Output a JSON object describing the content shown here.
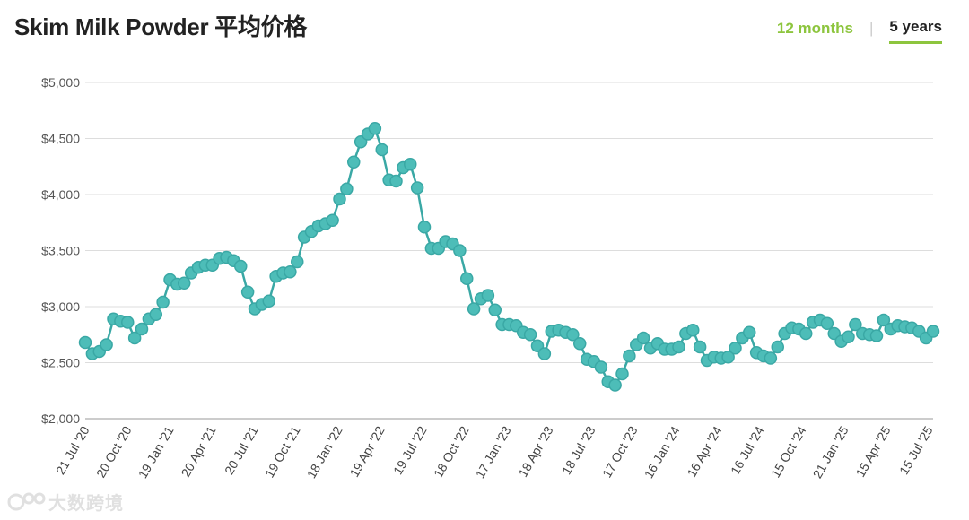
{
  "header": {
    "title": "Skim Milk Powder 平均价格",
    "tab_12m": "12 months",
    "tab_sep": "|",
    "tab_5y": "5 years"
  },
  "watermark": {
    "text": "大数跨境"
  },
  "colors": {
    "line": "#3aa8a5",
    "point_fill": "#4dbdb8",
    "grid": "#dddddd",
    "tab_active": "#8dc53e"
  },
  "chart_data": {
    "type": "line",
    "title": "",
    "xlabel": "",
    "ylabel": "",
    "ylim": [
      2000,
      5000
    ],
    "yticks": [
      2000,
      2500,
      3000,
      3500,
      4000,
      4500,
      5000
    ],
    "ytick_labels": [
      "$2,000",
      "$2,500",
      "$3,000",
      "$3,500",
      "$4,000",
      "$4,500",
      "$5,000"
    ],
    "xtick_labels": [
      "21 Jul '20",
      "20 Oct '20",
      "19 Jan '21",
      "20 Apr '21",
      "20 Jul '21",
      "19 Oct '21",
      "18 Jan '22",
      "19 Apr '22",
      "19 Jul '22",
      "18 Oct '22",
      "17 Jan '23",
      "18 Apr '23",
      "18 Jul '23",
      "17 Oct '23",
      "16 Jan '24",
      "16 Apr '24",
      "16 Jul '24",
      "15 Oct '24",
      "21 Jan '25",
      "15 Apr '25",
      "15 Jul '25"
    ],
    "grid": true,
    "legend": "none",
    "series": [
      {
        "values": [
          2680,
          2580,
          2600,
          2660,
          2890,
          2870,
          2860,
          2720,
          2800,
          2890,
          2930,
          3040,
          3240,
          3200,
          3210,
          3300,
          3350,
          3370,
          3370,
          3430,
          3440,
          3410,
          3360,
          3130,
          2980,
          3020,
          3050,
          3270,
          3300,
          3310,
          3400,
          3620,
          3670,
          3720,
          3740,
          3770,
          3960,
          4050,
          4290,
          4470,
          4540,
          4590,
          4400,
          4130,
          4120,
          4240,
          4270,
          4060,
          3710,
          3520,
          3520,
          3580,
          3560,
          3500,
          3250,
          2980,
          3070,
          3100,
          2970,
          2840,
          2840,
          2830,
          2770,
          2750,
          2650,
          2580,
          2780,
          2790,
          2770,
          2750,
          2670,
          2530,
          2510,
          2460,
          2330,
          2300,
          2400,
          2560,
          2660,
          2720,
          2630,
          2670,
          2620,
          2620,
          2640,
          2760,
          2790,
          2640,
          2520,
          2550,
          2540,
          2550,
          2630,
          2720,
          2770,
          2590,
          2560,
          2540,
          2640,
          2760,
          2810,
          2800,
          2760,
          2860,
          2880,
          2850,
          2760,
          2690,
          2730,
          2840,
          2760,
          2750,
          2740,
          2880,
          2800,
          2830,
          2820,
          2810,
          2780,
          2720,
          2780
        ]
      }
    ]
  }
}
